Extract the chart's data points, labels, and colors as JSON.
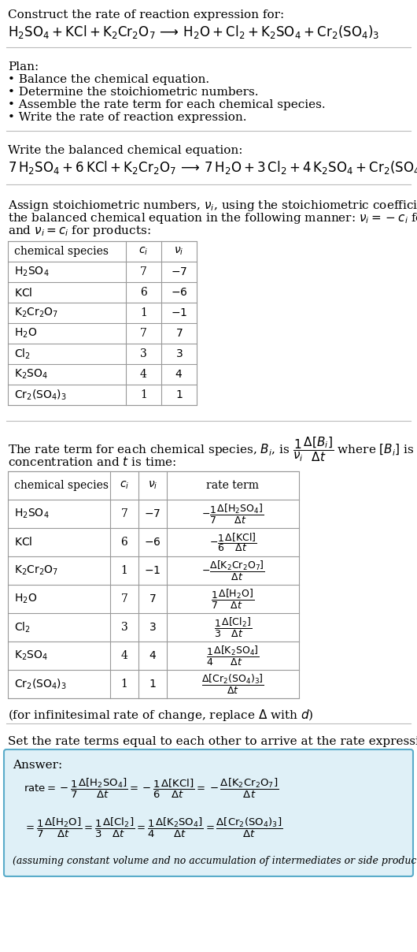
{
  "title_line1": "Construct the rate of reaction expression for:",
  "bg_color": "#ffffff",
  "answer_bg_color": "#dff0f7",
  "answer_border_color": "#5aacca",
  "table_border_color": "#999999",
  "text_color": "#000000",
  "plan_header": "Plan:",
  "plan_items": [
    "• Balance the chemical equation.",
    "• Determine the stoichiometric numbers.",
    "• Assemble the rate term for each chemical species.",
    "• Write the rate of reaction expression."
  ],
  "balanced_header": "Write the balanced chemical equation:",
  "infinitesimal_note": "(for infinitesimal rate of change, replace Δ with d)",
  "set_equal_text": "Set the rate terms equal to each other to arrive at the rate expression:",
  "answer_label": "Answer:",
  "assuming_text": "(assuming constant volume and no accumulation of intermediates or side products)"
}
